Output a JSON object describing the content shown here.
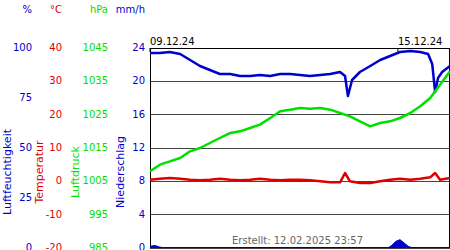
{
  "chart_data": [
    {
      "type": "line",
      "unit": "%",
      "ylabel": "Luftfeuchtigkeit",
      "color": "#0000cc",
      "x": [
        0,
        0.24,
        0.48,
        0.73,
        0.97,
        1.21,
        1.45,
        1.69,
        1.94,
        2.18,
        2.42,
        2.66,
        2.91,
        3.15,
        3.39,
        3.63,
        3.87,
        4.12,
        4.36,
        4.6,
        4.72,
        4.79,
        4.89,
        5.08,
        5.33,
        5.57,
        5.81,
        6.05,
        6.3,
        6.54,
        6.73,
        6.83,
        6.9,
        6.97,
        7.07,
        7.26
      ],
      "values": [
        97.5,
        97.5,
        98,
        97,
        94,
        91,
        89,
        87,
        87,
        86,
        86,
        86.5,
        86,
        87,
        87,
        86.5,
        86,
        86.5,
        87,
        88,
        86,
        76,
        84,
        88,
        91,
        94,
        96,
        98,
        98.5,
        98,
        97,
        92,
        78,
        85,
        88,
        91
      ],
      "xlim": [
        0,
        7.26
      ],
      "xticks": [
        {
          "value": 0,
          "label": "09.12.24"
        },
        {
          "value": 6,
          "label": "15.12.24"
        }
      ],
      "ylim": [
        0,
        100
      ],
      "yticks": [
        0,
        25,
        50,
        75,
        100
      ]
    },
    {
      "type": "line",
      "unit": "°C",
      "ylabel": "Temperatur",
      "color": "#dd0000",
      "grid": true,
      "x": [
        0,
        0.24,
        0.48,
        0.73,
        0.97,
        1.21,
        1.45,
        1.69,
        1.94,
        2.18,
        2.42,
        2.66,
        2.91,
        3.15,
        3.39,
        3.63,
        3.87,
        4.12,
        4.36,
        4.6,
        4.72,
        4.84,
        5.08,
        5.33,
        5.57,
        5.81,
        6.05,
        6.3,
        6.54,
        6.78,
        6.9,
        7.02,
        7.26
      ],
      "values": [
        0.5,
        0.8,
        1,
        0.8,
        0.5,
        0.3,
        0.5,
        0.8,
        0.5,
        0.3,
        0.5,
        0.8,
        0.5,
        0.3,
        0.5,
        0.5,
        0.3,
        0,
        -0.3,
        -0.3,
        2.5,
        0,
        -0.5,
        -0.5,
        0,
        0.5,
        0.8,
        0.5,
        0.8,
        1.2,
        2.5,
        0.5,
        1
      ],
      "xlim": [
        0,
        7.26
      ],
      "ylim": [
        -20,
        40
      ],
      "yticks": [
        -20,
        -10,
        0,
        10,
        20,
        30,
        40
      ]
    },
    {
      "type": "line",
      "unit": "hPa",
      "ylabel": "Luftdruck",
      "color": "#00e000",
      "x": [
        0,
        0.24,
        0.48,
        0.73,
        0.97,
        1.21,
        1.45,
        1.69,
        1.94,
        2.18,
        2.42,
        2.66,
        2.91,
        3.15,
        3.39,
        3.63,
        3.87,
        4.12,
        4.36,
        4.6,
        4.84,
        5.08,
        5.33,
        5.57,
        5.81,
        6.05,
        6.3,
        6.54,
        6.78,
        7.02,
        7.26
      ],
      "values": [
        1008,
        1010,
        1011,
        1012,
        1014,
        1015,
        1016.5,
        1018,
        1019.5,
        1020,
        1021,
        1022,
        1024,
        1026,
        1026.5,
        1027,
        1026.8,
        1027,
        1026.5,
        1025.5,
        1024.5,
        1023,
        1021.5,
        1022.5,
        1023,
        1024,
        1025.5,
        1027.5,
        1030,
        1034,
        1038
      ],
      "xlim": [
        0,
        7.26
      ],
      "ylim": [
        985,
        1045
      ],
      "yticks": [
        985,
        995,
        1005,
        1015,
        1025,
        1035,
        1045
      ]
    },
    {
      "type": "area",
      "unit": "mm/h",
      "ylabel": "Niederschlag",
      "color": "#0000cc",
      "x": [
        0,
        0.12,
        0.24,
        0.4,
        5.75,
        5.85,
        5.95,
        6.05,
        6.15,
        6.25,
        6.35,
        7.26
      ],
      "values": [
        0.2,
        0.3,
        0.1,
        0,
        0,
        0.3,
        0.8,
        1.0,
        0.6,
        0.2,
        0,
        0
      ],
      "xlim": [
        0,
        7.26
      ],
      "ylim": [
        0,
        24
      ],
      "yticks": [
        0,
        4,
        8,
        12,
        16,
        20,
        24
      ]
    }
  ],
  "footer": "Erstellt: 12.02.2025 23:57"
}
